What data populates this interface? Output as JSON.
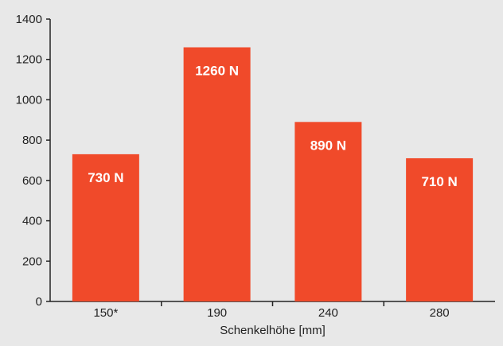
{
  "chart_data": {
    "type": "bar",
    "categories": [
      "150*",
      "190",
      "240",
      "280"
    ],
    "values": [
      730,
      1260,
      890,
      710
    ],
    "data_labels": [
      "730 N",
      "1260 N",
      "890 N",
      "710 N"
    ],
    "title": "",
    "xlabel": "Schenkelhöhe [mm]",
    "ylabel": "",
    "ylim": [
      0,
      1400
    ],
    "yticks": [
      "0",
      "200",
      "400",
      "600",
      "800",
      "1000",
      "1200",
      "1400"
    ],
    "grid": false,
    "colors": {
      "bar": "#f04a2a",
      "background": "#e8e8e8",
      "axis": "#222222"
    }
  }
}
